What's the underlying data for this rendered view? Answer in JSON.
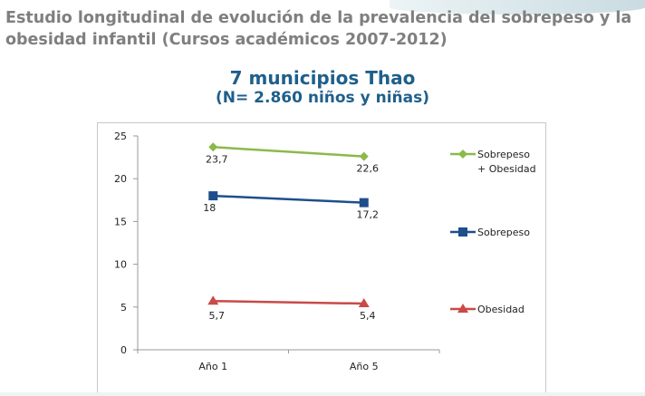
{
  "header": {
    "title": "Estudio longitudinal de evolución de la prevalencia del sobrepeso y la obesidad infantil (Cursos académicos 2007-2012)"
  },
  "chart_data": {
    "type": "line",
    "title": "7 municipios Thao",
    "subtitle": "(N= 2.860 niños y niñas)",
    "categories": [
      "Año 1",
      "Año 5"
    ],
    "ylim": [
      0,
      25
    ],
    "yticks": [
      "0",
      "5",
      "10",
      "15",
      "20",
      "25"
    ],
    "grid": false,
    "legend": "right",
    "series": [
      {
        "name": "Sobrepeso + Obesidad",
        "values": [
          23.7,
          22.6
        ],
        "labels": [
          "23,7",
          "22,6"
        ],
        "color": "#8cb94a",
        "marker": "diamond"
      },
      {
        "name": "Sobrepeso",
        "values": [
          18,
          17.2
        ],
        "labels": [
          "18",
          "17,2"
        ],
        "color": "#1f4e8c",
        "marker": "square"
      },
      {
        "name": "Obesidad",
        "values": [
          5.7,
          5.4
        ],
        "labels": [
          "5,7",
          "5,4"
        ],
        "color": "#c94a47",
        "marker": "triangle"
      }
    ]
  }
}
